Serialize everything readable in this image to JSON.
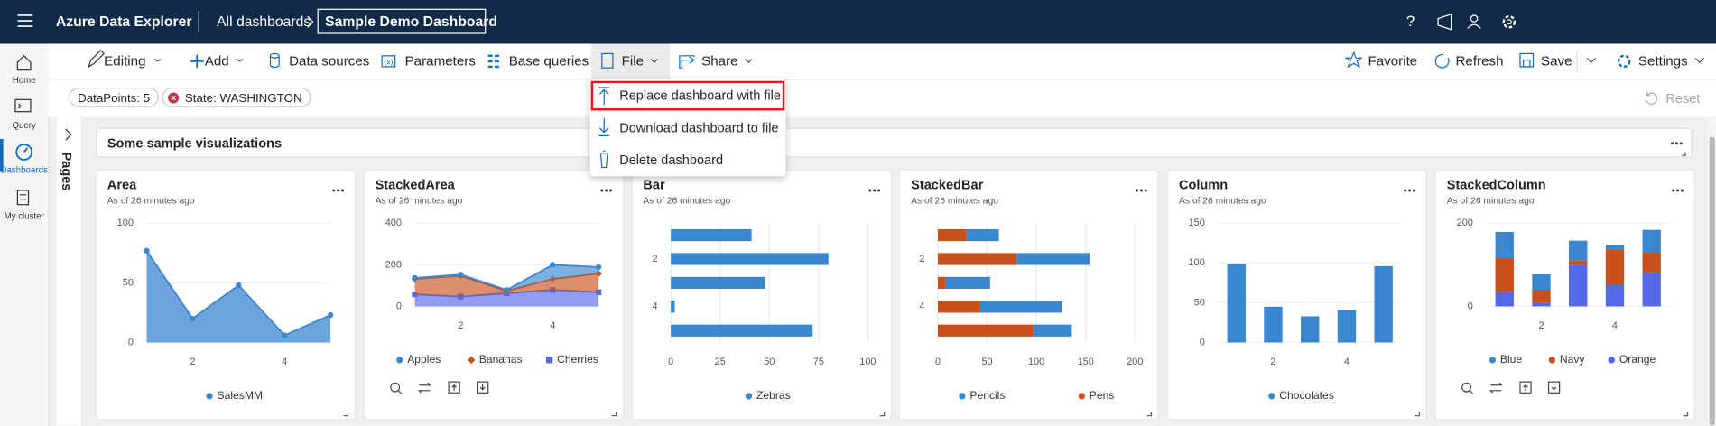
{
  "header": {
    "app_title": "Azure Data Explorer",
    "breadcrumb": "All dashboards",
    "dashboard_name": "Sample Demo Dashboard"
  },
  "sidebar": [
    "Home",
    "Query",
    "Dashboards",
    "My cluster"
  ],
  "toolbar": {
    "left": [
      "Editing",
      "Add",
      "Data sources",
      "Parameters",
      "Base queries",
      "File",
      "Share"
    ],
    "right": [
      "Favorite",
      "Refresh",
      "Save",
      "Settings"
    ]
  },
  "filters": [
    "DataPoints: 5",
    "State: WASHINGTON"
  ],
  "reset": "Reset",
  "file_menu": [
    "Replace dashboard with file",
    "Download dashboard to file",
    "Delete dashboard"
  ],
  "pages": "Pages",
  "section_title": "Some sample visualizations",
  "tiles": [
    {
      "title": "Area",
      "subtitle": "As of 26 minutes ago",
      "chart": {
        "type": "area",
        "x": [
          1,
          2,
          3,
          4,
          5
        ],
        "xlim": [
          1,
          5
        ],
        "xticks": [
          2,
          4
        ],
        "ylim": [
          0,
          100
        ],
        "yticks": [
          0,
          50,
          100
        ],
        "series": [
          {
            "name": "SalesMM",
            "color": "#3a87d0",
            "values": [
              77,
              20,
              48,
              6,
              23
            ]
          }
        ]
      }
    },
    {
      "title": "StackedArea",
      "subtitle": "As of 26 minutes ago",
      "chart": {
        "type": "area",
        "stacked": true,
        "x": [
          1,
          2,
          3,
          4,
          5
        ],
        "xlim": [
          1,
          5
        ],
        "xticks": [
          2,
          4
        ],
        "ylim": [
          0,
          400
        ],
        "yticks": [
          0,
          200,
          400
        ],
        "series": [
          {
            "name": "Apples",
            "color": "#3a87d0",
            "marker": "circle",
            "values": [
              5,
              6,
              5,
              68,
              31
            ]
          },
          {
            "name": "Bananas",
            "color": "#c8511b",
            "marker": "diamond",
            "values": [
              74,
              100,
              11,
              53,
              90
            ]
          },
          {
            "name": "Cherries",
            "color": "#5469e8",
            "marker": "square",
            "values": [
              58,
              47,
              63,
              79,
              68
            ]
          }
        ]
      }
    },
    {
      "title": "Bar",
      "subtitle": "As of 26 minutes ago",
      "chart": {
        "type": "bar",
        "horizontal": true,
        "categories": [
          null,
          2,
          null,
          4,
          null
        ],
        "xlim": [
          0,
          100
        ],
        "xticks": [
          0,
          25,
          50,
          75,
          100
        ],
        "series": [
          {
            "name": "Zebras",
            "color": "#3a87d0",
            "values": [
              41,
              80,
              48,
              2,
              72
            ]
          }
        ]
      }
    },
    {
      "title": "StackedBar",
      "subtitle": "As of 26 minutes ago",
      "chart": {
        "type": "bar",
        "horizontal": true,
        "stacked": true,
        "categories": [
          null,
          2,
          null,
          4,
          null
        ],
        "xlim": [
          0,
          200
        ],
        "xticks": [
          0,
          50,
          100,
          150,
          200
        ],
        "series": [
          {
            "name": "Pencils",
            "color": "#3a87d0",
            "values": [
              33,
              74,
              45,
              83,
              39
            ]
          },
          {
            "name": "Pens",
            "color": "#c8511b",
            "values": [
              29,
              80,
              8,
              43,
              97
            ]
          }
        ]
      }
    },
    {
      "title": "Column",
      "subtitle": "As of 26 minutes ago",
      "chart": {
        "type": "bar",
        "categories": [
          null,
          2,
          null,
          4,
          null
        ],
        "ylim": [
          0,
          150
        ],
        "yticks": [
          0,
          50,
          100,
          150
        ],
        "series": [
          {
            "name": "Chocolates",
            "color": "#3a87d0",
            "values": [
              99,
              45,
              33,
              41,
              96
            ]
          }
        ]
      }
    },
    {
      "title": "StackedColumn",
      "subtitle": "As of 26 minutes ago",
      "chart": {
        "type": "bar",
        "stacked": true,
        "categories": [
          null,
          2,
          null,
          4,
          null
        ],
        "ylim": [
          0,
          200
        ],
        "yticks": [
          0,
          200
        ],
        "series": [
          {
            "name": "Blue",
            "color": "#3a87d0",
            "values": [
              63,
              37,
              47,
              11,
              55
            ]
          },
          {
            "name": "Navy",
            "color": "#c8511b",
            "values": [
              82,
              32,
              11,
              84,
              47
            ]
          },
          {
            "name": "Orange",
            "color": "#5469e8",
            "values": [
              34,
              8,
              100,
              53,
              82
            ]
          }
        ]
      }
    }
  ]
}
